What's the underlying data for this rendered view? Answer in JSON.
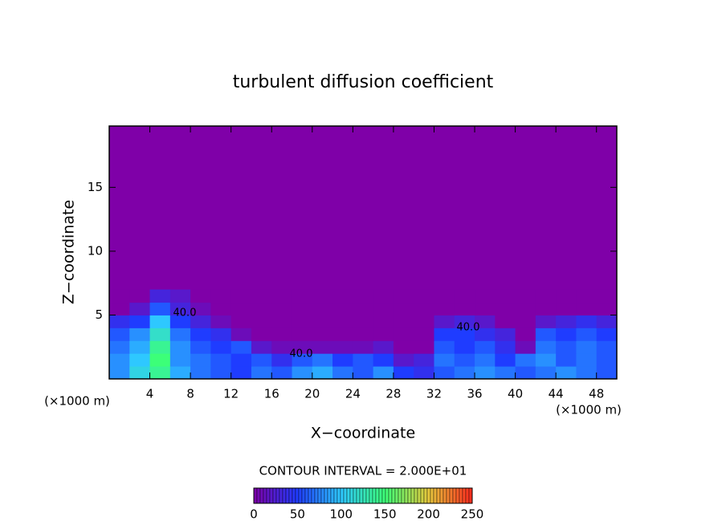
{
  "chart_data": {
    "type": "contour",
    "title": "turbulent diffusion coefficient",
    "x_label": "X−coordinate",
    "y_label": "Z−coordinate",
    "x_unit": "(×1000 m)",
    "y_unit": "(×1000 m)",
    "footer": "CONTOUR INTERVAL = 2.000E+01",
    "contour_labels": [
      "40.0",
      "40.0",
      "40.0"
    ],
    "x": [
      1,
      3,
      5,
      7,
      9,
      11,
      13,
      15,
      17,
      19,
      21,
      23,
      25,
      27,
      29,
      31,
      33,
      35,
      37,
      39,
      41,
      43,
      45,
      47,
      49
    ],
    "z": [
      0.5,
      1.5,
      2.5,
      3.5,
      4.5,
      5.5,
      6.5
    ],
    "values": [
      [
        80,
        110,
        140,
        90,
        70,
        60,
        50,
        70,
        60,
        80,
        90,
        70,
        60,
        80,
        50,
        40,
        60,
        70,
        80,
        70,
        60,
        70,
        80,
        70,
        60
      ],
      [
        80,
        100,
        150,
        80,
        70,
        60,
        50,
        60,
        40,
        60,
        70,
        50,
        60,
        50,
        20,
        30,
        70,
        60,
        70,
        50,
        70,
        80,
        60,
        70,
        60
      ],
      [
        70,
        90,
        140,
        80,
        60,
        50,
        60,
        20,
        10,
        10,
        10,
        10,
        10,
        20,
        0,
        0,
        60,
        50,
        60,
        40,
        10,
        70,
        60,
        70,
        60
      ],
      [
        60,
        80,
        120,
        70,
        50,
        40,
        10,
        0,
        0,
        0,
        0,
        0,
        0,
        0,
        0,
        0,
        50,
        50,
        40,
        30,
        0,
        60,
        50,
        60,
        50
      ],
      [
        40,
        50,
        100,
        50,
        30,
        10,
        0,
        0,
        0,
        0,
        0,
        0,
        0,
        0,
        0,
        0,
        20,
        30,
        20,
        0,
        0,
        20,
        30,
        40,
        30
      ],
      [
        0,
        20,
        60,
        30,
        10,
        0,
        0,
        0,
        0,
        0,
        0,
        0,
        0,
        0,
        0,
        0,
        0,
        0,
        0,
        0,
        0,
        0,
        0,
        0,
        0
      ],
      [
        0,
        0,
        30,
        20,
        0,
        0,
        0,
        0,
        0,
        0,
        0,
        0,
        0,
        0,
        0,
        0,
        0,
        0,
        0,
        0,
        0,
        0,
        0,
        0,
        0
      ]
    ],
    "background_color": "#7f00a8",
    "colorscale": [
      "#7f00a8",
      "#1f3cff",
      "#2ec8ff",
      "#3cff78",
      "#e6c83c",
      "#ff2a1e"
    ],
    "xlim": [
      0,
      50
    ],
    "ylim": [
      0,
      19.8
    ],
    "xticks": [
      4,
      8,
      12,
      16,
      20,
      24,
      28,
      32,
      36,
      40,
      44,
      48
    ],
    "yticks": [
      5,
      10,
      15
    ],
    "colorbar_ticks": [
      0,
      50,
      100,
      150,
      200,
      250
    ]
  }
}
